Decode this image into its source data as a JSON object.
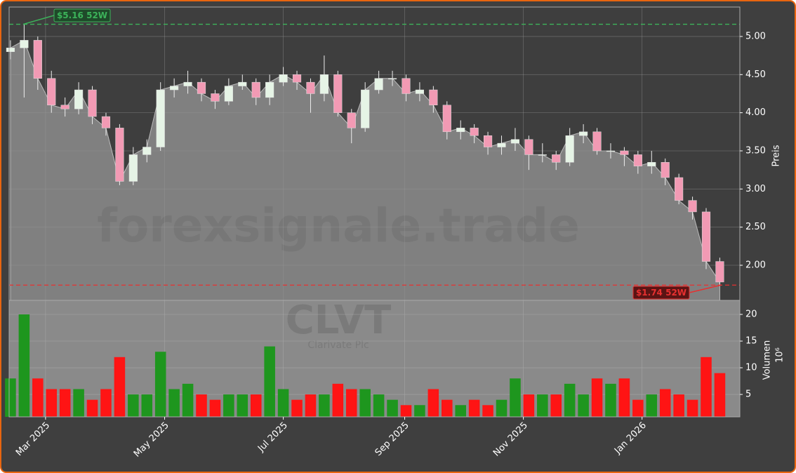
{
  "chart_data": [
    {
      "type": "candlestick",
      "open": [
        4.8,
        4.85,
        4.95,
        4.45,
        4.1,
        4.05,
        4.3,
        3.95,
        3.8,
        3.1,
        3.45,
        3.55,
        4.3,
        4.35,
        4.4,
        4.25,
        4.15,
        4.35,
        4.4,
        4.2,
        4.4,
        4.5,
        4.4,
        4.25,
        4.5,
        4.0,
        3.8,
        4.3,
        4.45,
        4.45,
        4.25,
        4.3,
        4.1,
        3.75,
        3.8,
        3.7,
        3.55,
        3.6,
        3.65,
        3.45,
        3.45,
        3.35,
        3.7,
        3.75,
        3.5,
        3.5,
        3.45,
        3.3,
        3.35,
        3.15,
        2.85,
        2.7,
        2.05
      ],
      "high": [
        4.95,
        5.16,
        5.0,
        4.55,
        4.2,
        4.4,
        4.35,
        4.0,
        3.85,
        3.55,
        3.65,
        4.4,
        4.45,
        4.55,
        4.45,
        4.3,
        4.45,
        4.5,
        4.45,
        4.5,
        4.6,
        4.55,
        4.45,
        4.75,
        4.55,
        4.05,
        4.4,
        4.55,
        4.55,
        4.5,
        4.4,
        4.35,
        4.15,
        3.9,
        3.85,
        3.75,
        3.7,
        3.8,
        3.7,
        3.6,
        3.5,
        3.8,
        3.85,
        3.8,
        3.6,
        3.55,
        3.5,
        3.5,
        3.4,
        3.2,
        2.9,
        2.75,
        2.1
      ],
      "low": [
        4.7,
        4.2,
        4.3,
        4.0,
        3.95,
        3.98,
        3.85,
        3.7,
        3.05,
        3.05,
        3.35,
        3.5,
        4.2,
        4.25,
        4.15,
        4.05,
        4.1,
        4.3,
        4.1,
        4.1,
        4.35,
        4.3,
        4.0,
        4.15,
        3.95,
        3.6,
        3.75,
        4.25,
        4.35,
        4.15,
        4.15,
        4.0,
        3.65,
        3.65,
        3.6,
        3.45,
        3.45,
        3.5,
        3.25,
        3.35,
        3.25,
        3.3,
        3.6,
        3.45,
        3.4,
        3.3,
        3.2,
        3.2,
        3.05,
        2.8,
        2.6,
        1.95,
        1.74
      ],
      "close": [
        4.85,
        4.95,
        4.45,
        4.1,
        4.05,
        4.3,
        3.95,
        3.8,
        3.1,
        3.45,
        3.55,
        4.3,
        4.35,
        4.4,
        4.25,
        4.15,
        4.35,
        4.4,
        4.2,
        4.4,
        4.5,
        4.4,
        4.25,
        4.5,
        4.0,
        3.8,
        4.3,
        4.45,
        4.45,
        4.25,
        4.3,
        4.1,
        3.75,
        3.8,
        3.7,
        3.55,
        3.6,
        3.65,
        3.45,
        3.45,
        3.35,
        3.7,
        3.75,
        3.5,
        3.5,
        3.45,
        3.3,
        3.35,
        3.15,
        2.85,
        2.7,
        2.05,
        1.78
      ],
      "up_color": "#e6f4e6",
      "down_color": "#f29ab4",
      "area_color": "#808080",
      "xlim": [
        -0.1,
        53.47
      ],
      "ylim": [
        1.54,
        5.386
      ],
      "yticks": [
        {
          "value": 2,
          "label": "2.00"
        },
        {
          "value": 2.5,
          "label": "2.50"
        },
        {
          "value": 3,
          "label": "3.00"
        },
        {
          "value": 3.5,
          "label": "3.50"
        },
        {
          "value": 4,
          "label": "4.00"
        },
        {
          "value": 4.5,
          "label": "4.50"
        },
        {
          "value": 5,
          "label": "5.00"
        }
      ],
      "y_label": "Preis",
      "watermark": "forexsignale.trade",
      "grid": true,
      "hlines": [
        {
          "value": 5.16,
          "label": "$5.16 52W",
          "color": "#3cb35a"
        },
        {
          "value": 1.74,
          "label": "$1.74 52W",
          "color": "#e83030"
        }
      ]
    },
    {
      "type": "bar",
      "values": [
        8,
        20,
        8,
        6,
        6,
        6,
        4,
        6,
        12,
        5,
        5,
        13,
        6,
        7,
        5,
        4,
        5,
        5,
        5,
        14,
        6,
        4,
        5,
        5,
        7,
        6,
        6,
        5,
        4,
        3,
        3,
        6,
        4,
        3,
        4,
        3,
        4,
        8,
        5,
        5,
        5,
        7,
        5,
        8,
        7,
        8,
        4,
        5,
        6,
        5,
        4,
        12,
        9
      ],
      "up_color": "#1e961e",
      "down_color": "#ff1414",
      "xlim": [
        -0.1,
        53.47
      ],
      "ylim": [
        0.8,
        22.63
      ],
      "yticks": [
        5,
        10,
        15,
        20
      ],
      "xticks": [
        {
          "value": 2.57,
          "label": "Mar 2025"
        },
        {
          "value": 11.3,
          "label": "May 2025"
        },
        {
          "value": 20.0,
          "label": "Jul 2025"
        },
        {
          "value": 28.9,
          "label": "Sep 2025"
        },
        {
          "value": 37.6,
          "label": "Nov 2025"
        },
        {
          "value": 46.3,
          "label": "Jan 2026"
        }
      ],
      "y_label": "Volumen",
      "scale_label": "10⁶",
      "watermark": "CLVT",
      "watermark_sub": "Clarivate Plc",
      "grid": true
    }
  ]
}
